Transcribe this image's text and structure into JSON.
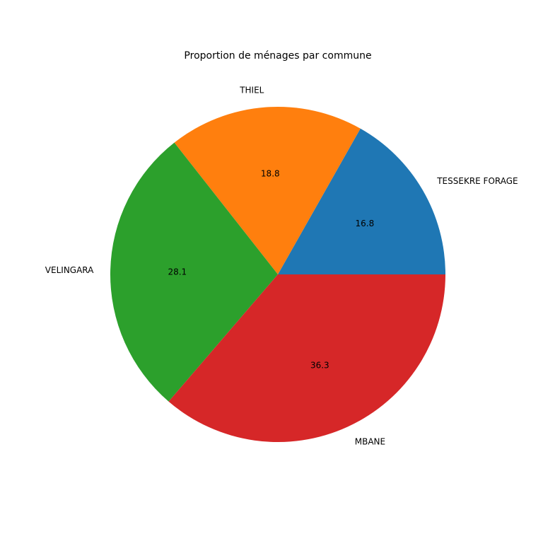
{
  "chart_data": {
    "type": "pie",
    "title": "Proportion de ménages par commune",
    "slices": [
      {
        "label": "TESSEKRE FORAGE",
        "value": 16.8,
        "display": "16.8",
        "color": "#1f77b4"
      },
      {
        "label": "THIEL",
        "value": 18.8,
        "display": "18.8",
        "color": "#ff7f0e"
      },
      {
        "label": "VELINGARA",
        "value": 28.1,
        "display": "28.1",
        "color": "#2ca02c"
      },
      {
        "label": "MBANE",
        "value": 36.3,
        "display": "36.3",
        "color": "#d62728"
      }
    ],
    "start_angle_deg": 0,
    "direction": "counterclockwise",
    "legend": "none"
  }
}
